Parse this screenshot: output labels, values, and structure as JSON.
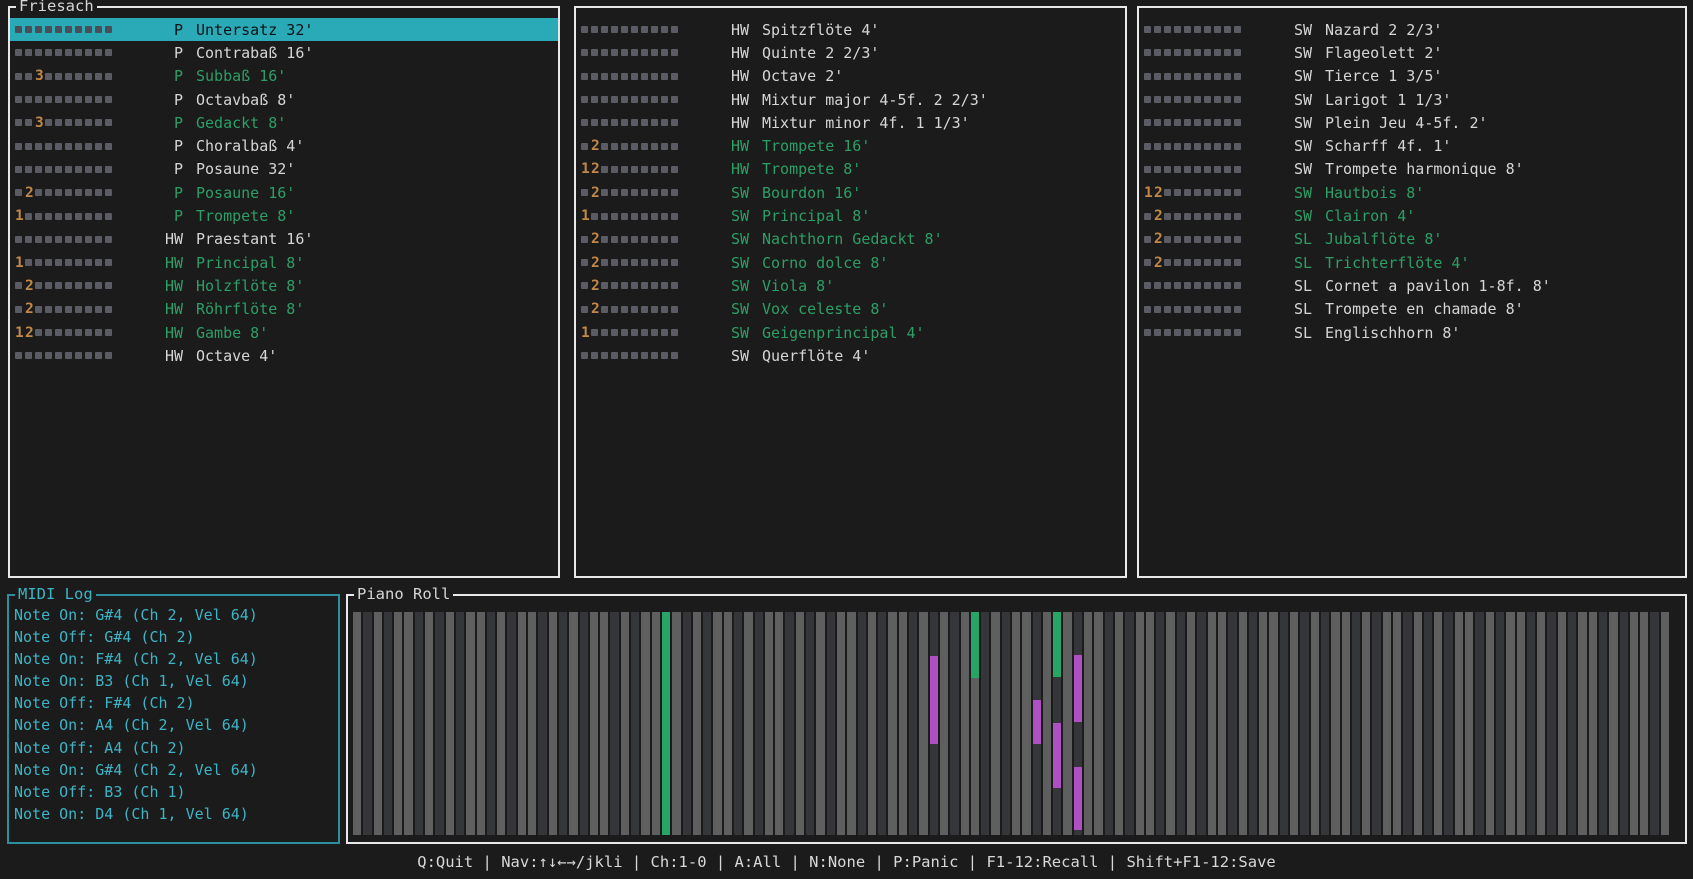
{
  "window": {
    "title": "Friesach"
  },
  "colors": {
    "background": "#1b1b1b",
    "panel_border": "#e8e8e8",
    "selected_row_teal": "#2aa9b7",
    "active_stop_green": "#2d9e66",
    "channel_digit_orange": "#c08849",
    "meter_square_gray": "#5b5b64",
    "text": "#d6d6d6",
    "midi_log_cyan": "#3db4c6",
    "midi_log_border": "#2d8f9e",
    "roll_white_key": "#5f5f5f",
    "roll_black_key": "#34363a",
    "note_green": "#27a566",
    "note_magenta": "#ae4fc4"
  },
  "stop_panels": [
    {
      "title": "Friesach",
      "stops": [
        {
          "division": "P",
          "name": "Untersatz 32'",
          "channels": [],
          "active": false,
          "selected": true
        },
        {
          "division": "P",
          "name": "Contrabaß 16'",
          "channels": [],
          "active": false,
          "selected": false
        },
        {
          "division": "P",
          "name": "Subbaß 16'",
          "channels": [
            3
          ],
          "active": true,
          "selected": false
        },
        {
          "division": "P",
          "name": "Octavbaß 8'",
          "channels": [],
          "active": false,
          "selected": false
        },
        {
          "division": "P",
          "name": "Gedackt 8'",
          "channels": [
            3
          ],
          "active": true,
          "selected": false
        },
        {
          "division": "P",
          "name": "Choralbaß 4'",
          "channels": [],
          "active": false,
          "selected": false
        },
        {
          "division": "P",
          "name": "Posaune 32'",
          "channels": [],
          "active": false,
          "selected": false
        },
        {
          "division": "P",
          "name": "Posaune 16'",
          "channels": [
            2
          ],
          "active": true,
          "selected": false
        },
        {
          "division": "P",
          "name": "Trompete 8'",
          "channels": [
            1
          ],
          "active": true,
          "selected": false
        },
        {
          "division": "HW",
          "name": "Praestant 16'",
          "channels": [],
          "active": false,
          "selected": false
        },
        {
          "division": "HW",
          "name": "Principal 8'",
          "channels": [
            1
          ],
          "active": true,
          "selected": false
        },
        {
          "division": "HW",
          "name": "Holzflöte 8'",
          "channels": [
            2
          ],
          "active": true,
          "selected": false
        },
        {
          "division": "HW",
          "name": "Röhrflöte 8'",
          "channels": [
            2
          ],
          "active": true,
          "selected": false
        },
        {
          "division": "HW",
          "name": "Gambe 8'",
          "channels": [
            1,
            2
          ],
          "active": true,
          "selected": false
        },
        {
          "division": "HW",
          "name": "Octave 4'",
          "channels": [],
          "active": false,
          "selected": false
        }
      ]
    },
    {
      "title": "",
      "stops": [
        {
          "division": "HW",
          "name": "Spitzflöte 4'",
          "channels": [],
          "active": false,
          "selected": false
        },
        {
          "division": "HW",
          "name": "Quinte 2 2/3'",
          "channels": [],
          "active": false,
          "selected": false
        },
        {
          "division": "HW",
          "name": "Octave 2'",
          "channels": [],
          "active": false,
          "selected": false
        },
        {
          "division": "HW",
          "name": "Mixtur major 4-5f. 2 2/3'",
          "channels": [],
          "active": false,
          "selected": false
        },
        {
          "division": "HW",
          "name": "Mixtur minor 4f. 1 1/3'",
          "channels": [],
          "active": false,
          "selected": false
        },
        {
          "division": "HW",
          "name": "Trompete 16'",
          "channels": [
            2
          ],
          "active": true,
          "selected": false
        },
        {
          "division": "HW",
          "name": "Trompete 8'",
          "channels": [
            1,
            2
          ],
          "active": true,
          "selected": false
        },
        {
          "division": "SW",
          "name": "Bourdon 16'",
          "channels": [
            2
          ],
          "active": true,
          "selected": false
        },
        {
          "division": "SW",
          "name": "Principal 8'",
          "channels": [
            1
          ],
          "active": true,
          "selected": false
        },
        {
          "division": "SW",
          "name": "Nachthorn Gedackt 8'",
          "channels": [
            2
          ],
          "active": true,
          "selected": false
        },
        {
          "division": "SW",
          "name": "Corno dolce 8'",
          "channels": [
            2
          ],
          "active": true,
          "selected": false
        },
        {
          "division": "SW",
          "name": "Viola 8'",
          "channels": [
            2
          ],
          "active": true,
          "selected": false
        },
        {
          "division": "SW",
          "name": "Vox celeste 8'",
          "channels": [
            2
          ],
          "active": true,
          "selected": false
        },
        {
          "division": "SW",
          "name": "Geigenprincipal 4'",
          "channels": [
            1
          ],
          "active": true,
          "selected": false
        },
        {
          "division": "SW",
          "name": "Querflöte 4'",
          "channels": [],
          "active": false,
          "selected": false
        }
      ]
    },
    {
      "title": "",
      "stops": [
        {
          "division": "SW",
          "name": "Nazard 2 2/3'",
          "channels": [],
          "active": false,
          "selected": false
        },
        {
          "division": "SW",
          "name": "Flageolett 2'",
          "channels": [],
          "active": false,
          "selected": false
        },
        {
          "division": "SW",
          "name": "Tierce 1 3/5'",
          "channels": [],
          "active": false,
          "selected": false
        },
        {
          "division": "SW",
          "name": "Larigot 1 1/3'",
          "channels": [],
          "active": false,
          "selected": false
        },
        {
          "division": "SW",
          "name": "Plein Jeu 4-5f. 2'",
          "channels": [],
          "active": false,
          "selected": false
        },
        {
          "division": "SW",
          "name": "Scharff 4f. 1'",
          "channels": [],
          "active": false,
          "selected": false
        },
        {
          "division": "SW",
          "name": "Trompete harmonique 8'",
          "channels": [],
          "active": false,
          "selected": false
        },
        {
          "division": "SW",
          "name": "Hautbois 8'",
          "channels": [
            1,
            2
          ],
          "active": true,
          "selected": false
        },
        {
          "division": "SW",
          "name": "Clairon 4'",
          "channels": [
            2
          ],
          "active": true,
          "selected": false
        },
        {
          "division": "SL",
          "name": "Jubalflöte 8'",
          "channels": [
            2
          ],
          "active": true,
          "selected": false
        },
        {
          "division": "SL",
          "name": "Trichterflöte 4'",
          "channels": [
            2
          ],
          "active": true,
          "selected": false
        },
        {
          "division": "SL",
          "name": "Cornet a pavilon 1-8f. 8'",
          "channels": [],
          "active": false,
          "selected": false
        },
        {
          "division": "SL",
          "name": "Trompete en chamade 8'",
          "channels": [],
          "active": false,
          "selected": false
        },
        {
          "division": "SL",
          "name": "Englischhorn 8'",
          "channels": [],
          "active": false,
          "selected": false
        }
      ]
    }
  ],
  "midi_log": {
    "title": "MIDI Log",
    "lines": [
      "Note On: G#4 (Ch 2, Vel 64)",
      "Note Off: G#4 (Ch 2)",
      "Note On: F#4 (Ch 2, Vel 64)",
      "Note On: B3 (Ch 1, Vel 64)",
      "Note Off: F#4 (Ch 2)",
      "Note On: A4 (Ch 2, Vel 64)",
      "Note Off: A4 (Ch 2)",
      "Note On: G#4 (Ch 2, Vel 64)",
      "Note Off: B3 (Ch 1)",
      "Note On: D4 (Ch 1, Vel 64)"
    ]
  },
  "piano_roll": {
    "title": "Piano Roll",
    "column_count": 128,
    "black_key_pattern": [
      1,
      3,
      6,
      8,
      10
    ],
    "note_bars": [
      {
        "col": 30,
        "color": "green",
        "from_pct": 0,
        "to_pct": 100
      },
      {
        "col": 56,
        "color": "magenta",
        "from_pct": 19.7,
        "to_pct": 59.2
      },
      {
        "col": 60,
        "color": "green",
        "from_pct": 0,
        "to_pct": 29.6
      },
      {
        "col": 66,
        "color": "magenta",
        "from_pct": 39.5,
        "to_pct": 59.2
      },
      {
        "col": 68,
        "color": "green",
        "from_pct": 0,
        "to_pct": 29.1
      },
      {
        "col": 68,
        "color": "magenta",
        "from_pct": 49.8,
        "to_pct": 78.9
      },
      {
        "col": 70,
        "color": "magenta",
        "from_pct": 19.3,
        "to_pct": 49.3
      },
      {
        "col": 70,
        "color": "magenta",
        "from_pct": 69.5,
        "to_pct": 97.8
      }
    ]
  },
  "status_bar": {
    "text": "Q:Quit | Nav:↑↓←→/jkli | Ch:1-0 | A:All | N:None | P:Panic | F1-12:Recall | Shift+F1-12:Save"
  }
}
